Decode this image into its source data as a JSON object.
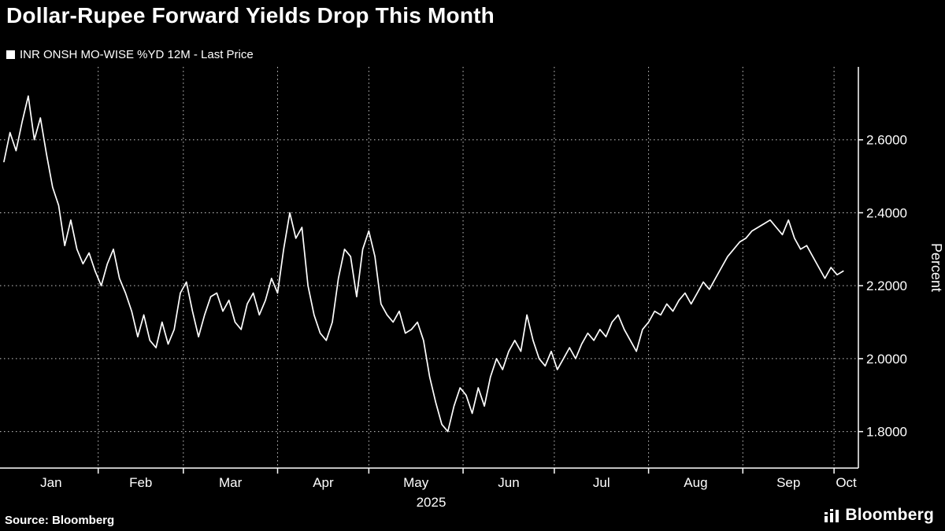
{
  "chart_data": {
    "type": "line",
    "title": "Dollar-Rupee Forward Yields Drop This Month",
    "legend": "INR ONSH MO-WISE %YD 12M - Last Price",
    "ylabel": "Percent",
    "year_label": "2025",
    "line_color": "#ffffff",
    "grid_color": "#c8c8c8",
    "ylim": [
      1.7,
      2.8
    ],
    "y_ticks": [
      1.8,
      2.0,
      2.2,
      2.4,
      2.6
    ],
    "y_tick_labels": [
      "1.8000",
      "2.0000",
      "2.2000",
      "2.4000",
      "2.6000"
    ],
    "months": [
      {
        "label": "Jan",
        "start": 0
      },
      {
        "label": "Feb",
        "start": 31
      },
      {
        "label": "Mar",
        "start": 59
      },
      {
        "label": "Apr",
        "start": 90
      },
      {
        "label": "May",
        "start": 120
      },
      {
        "label": "Jun",
        "start": 151
      },
      {
        "label": "Jul",
        "start": 181
      },
      {
        "label": "Aug",
        "start": 212
      },
      {
        "label": "Sep",
        "start": 243
      },
      {
        "label": "Oct",
        "start": 273
      }
    ],
    "axis_end_day": 281,
    "x_start_day": 0,
    "sample_step_days": 2,
    "values": [
      2.54,
      2.62,
      2.57,
      2.65,
      2.72,
      2.6,
      2.66,
      2.56,
      2.47,
      2.42,
      2.31,
      2.38,
      2.3,
      2.26,
      2.29,
      2.24,
      2.2,
      2.26,
      2.3,
      2.22,
      2.18,
      2.13,
      2.06,
      2.12,
      2.05,
      2.03,
      2.1,
      2.04,
      2.08,
      2.18,
      2.21,
      2.13,
      2.06,
      2.12,
      2.17,
      2.18,
      2.13,
      2.16,
      2.1,
      2.08,
      2.15,
      2.18,
      2.12,
      2.16,
      2.22,
      2.18,
      2.3,
      2.4,
      2.33,
      2.36,
      2.2,
      2.12,
      2.07,
      2.05,
      2.1,
      2.22,
      2.3,
      2.28,
      2.17,
      2.3,
      2.35,
      2.28,
      2.15,
      2.12,
      2.1,
      2.13,
      2.07,
      2.08,
      2.1,
      2.05,
      1.95,
      1.88,
      1.82,
      1.8,
      1.87,
      1.92,
      1.9,
      1.85,
      1.92,
      1.87,
      1.95,
      2.0,
      1.97,
      2.02,
      2.05,
      2.02,
      2.12,
      2.05,
      2.0,
      1.98,
      2.02,
      1.97,
      2.0,
      2.03,
      2.0,
      2.04,
      2.07,
      2.05,
      2.08,
      2.06,
      2.1,
      2.12,
      2.08,
      2.05,
      2.02,
      2.08,
      2.1,
      2.13,
      2.12,
      2.15,
      2.13,
      2.16,
      2.18,
      2.15,
      2.18,
      2.21,
      2.19,
      2.22,
      2.25,
      2.28,
      2.3,
      2.32,
      2.33,
      2.35,
      2.36,
      2.37,
      2.38,
      2.36,
      2.34,
      2.38,
      2.33,
      2.3,
      2.31,
      2.28,
      2.25,
      2.22,
      2.25,
      2.23,
      2.24
    ]
  },
  "footer": {
    "source": "Source: Bloomberg",
    "logo_text": "Bloomberg"
  }
}
